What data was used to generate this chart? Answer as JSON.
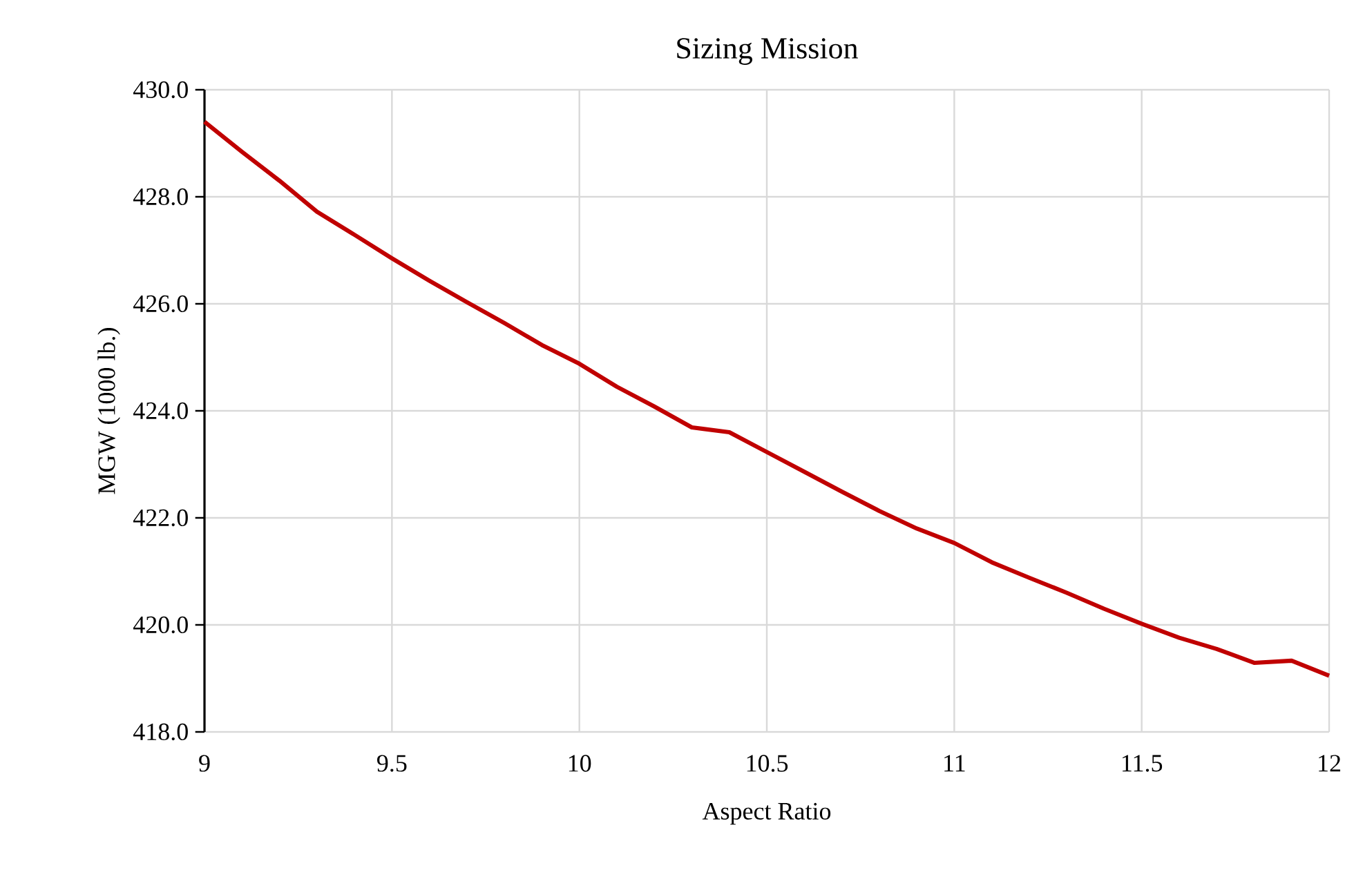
{
  "chart_data": {
    "type": "line",
    "title": "Sizing Mission",
    "xlabel": "Aspect Ratio",
    "ylabel": "MGW (1000 lb.)",
    "x": [
      9.0,
      9.1,
      9.2,
      9.3,
      9.4,
      9.5,
      9.6,
      9.7,
      9.8,
      9.9,
      10.0,
      10.1,
      10.2,
      10.3,
      10.4,
      10.5,
      10.6,
      10.7,
      10.8,
      10.9,
      11.0,
      11.1,
      11.2,
      11.3,
      11.4,
      11.5,
      11.6,
      11.7,
      11.8,
      11.9,
      12.0
    ],
    "series": [
      {
        "color": "#c00000",
        "values": [
          429.4,
          428.84,
          428.3,
          427.72,
          427.29,
          426.85,
          426.43,
          426.03,
          425.64,
          425.23,
          424.88,
          424.45,
          424.08,
          423.69,
          423.6,
          423.23,
          422.86,
          422.49,
          422.13,
          421.8,
          421.53,
          421.17,
          420.88,
          420.6,
          420.3,
          420.02,
          419.76,
          419.55,
          419.29,
          419.33,
          419.05
        ]
      }
    ],
    "xlim": [
      9,
      12
    ],
    "ylim": [
      418,
      430
    ],
    "xticks": [
      9,
      9.5,
      10,
      10.5,
      11,
      11.5,
      12
    ],
    "yticks": [
      {
        "value": 418,
        "label": "418.0"
      },
      {
        "value": 420,
        "label": "420.0"
      },
      {
        "value": 422,
        "label": "422.0"
      },
      {
        "value": 424,
        "label": "424.0"
      },
      {
        "value": 426,
        "label": "426.0"
      },
      {
        "value": 428,
        "label": "428.0"
      },
      {
        "value": 430,
        "label": "430.0"
      }
    ],
    "grid": true,
    "marker": "none",
    "line_style": "solid"
  }
}
